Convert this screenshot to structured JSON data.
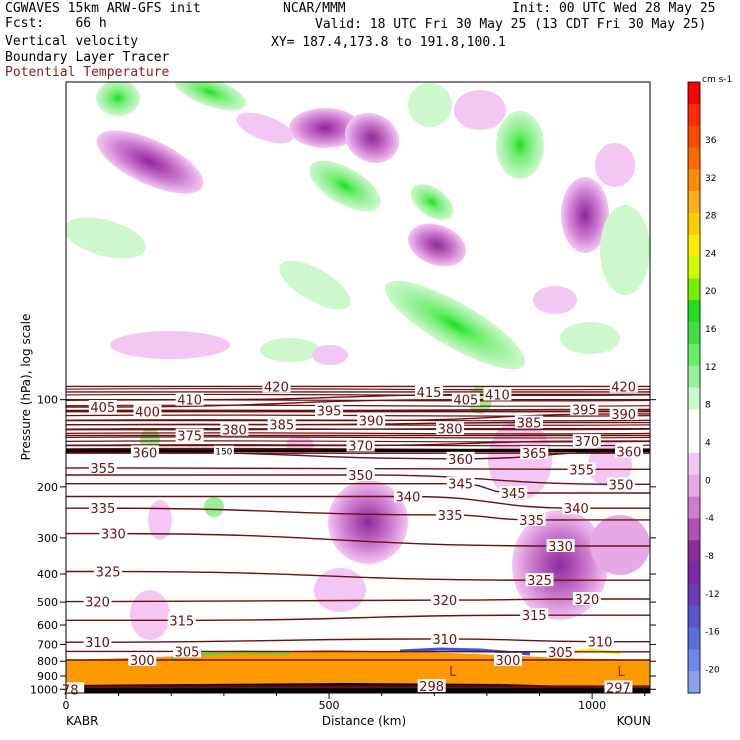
{
  "header": {
    "left_line1": "CGWAVES 15km ARW-GFS init",
    "left_line2": "Fcst:    66 h",
    "center_line1": "NCAR/MMM",
    "init": "Init: 00 UTC Wed 28 May 25",
    "valid": "Valid: 18 UTC Fri 30 May 25 (13 CDT Fri 30 May 25)",
    "xy": "XY= 187.4,173.8 to 191.8,100.1",
    "field1": "Vertical velocity",
    "field2": "Boundary Layer Tracer",
    "field3": "Potential Temperature",
    "field3_color": "#8b1a1a"
  },
  "chart_data": {
    "type": "cross-section",
    "xlabel": "Distance (km)",
    "ylabel": "Pressure (hPa), log scale",
    "xlim": [
      0,
      1110
    ],
    "ylim_hpa": [
      1030,
      8
    ],
    "x_ticks": [
      "0",
      "500",
      "1000"
    ],
    "x_tick_values": [
      0,
      500,
      1000
    ],
    "y_ticks": [
      "100",
      "200",
      "300",
      "400",
      "500",
      "600",
      "700",
      "800",
      "900",
      "1000"
    ],
    "y_tick_values": [
      100,
      200,
      300,
      400,
      500,
      600,
      700,
      800,
      900,
      1000
    ],
    "endpoints": {
      "left": "KABR",
      "right": "KOUN"
    },
    "tropopause_hpa": 150,
    "tropopause_label": "150",
    "theta_labels": [
      {
        "text": "420",
        "x": 400,
        "p": 90
      },
      {
        "text": "420",
        "x": 1060,
        "p": 90
      },
      {
        "text": "415",
        "x": 690,
        "p": 94
      },
      {
        "text": "410",
        "x": 235,
        "p": 100
      },
      {
        "text": "410",
        "x": 820,
        "p": 96
      },
      {
        "text": "405",
        "x": 70,
        "p": 106
      },
      {
        "text": "405",
        "x": 760,
        "p": 100
      },
      {
        "text": "400",
        "x": 155,
        "p": 110
      },
      {
        "text": "395",
        "x": 500,
        "p": 109
      },
      {
        "text": "395",
        "x": 985,
        "p": 108
      },
      {
        "text": "390",
        "x": 580,
        "p": 118
      },
      {
        "text": "390",
        "x": 1060,
        "p": 112
      },
      {
        "text": "385",
        "x": 410,
        "p": 122
      },
      {
        "text": "385",
        "x": 880,
        "p": 120
      },
      {
        "text": "380",
        "x": 320,
        "p": 127
      },
      {
        "text": "380",
        "x": 730,
        "p": 126
      },
      {
        "text": "375",
        "x": 235,
        "p": 133
      },
      {
        "text": "370",
        "x": 560,
        "p": 144
      },
      {
        "text": "370",
        "x": 990,
        "p": 139
      },
      {
        "text": "365",
        "x": 890,
        "p": 153
      },
      {
        "text": "360",
        "x": 150,
        "p": 152
      },
      {
        "text": "360",
        "x": 750,
        "p": 160
      },
      {
        "text": "360",
        "x": 1070,
        "p": 151
      },
      {
        "text": "355",
        "x": 70,
        "p": 172
      },
      {
        "text": "355",
        "x": 980,
        "p": 174
      },
      {
        "text": "350",
        "x": 560,
        "p": 182
      },
      {
        "text": "350",
        "x": 1055,
        "p": 196
      },
      {
        "text": "345",
        "x": 750,
        "p": 195
      },
      {
        "text": "345",
        "x": 850,
        "p": 210
      },
      {
        "text": "340",
        "x": 650,
        "p": 216
      },
      {
        "text": "340",
        "x": 970,
        "p": 237
      },
      {
        "text": "335",
        "x": 70,
        "p": 237
      },
      {
        "text": "335",
        "x": 730,
        "p": 250
      },
      {
        "text": "335",
        "x": 885,
        "p": 260
      },
      {
        "text": "330",
        "x": 90,
        "p": 290
      },
      {
        "text": "330",
        "x": 940,
        "p": 320
      },
      {
        "text": "325",
        "x": 80,
        "p": 392
      },
      {
        "text": "325",
        "x": 900,
        "p": 420
      },
      {
        "text": "320",
        "x": 60,
        "p": 498
      },
      {
        "text": "320",
        "x": 720,
        "p": 492
      },
      {
        "text": "320",
        "x": 990,
        "p": 488
      },
      {
        "text": "315",
        "x": 220,
        "p": 578
      },
      {
        "text": "315",
        "x": 890,
        "p": 555
      },
      {
        "text": "310",
        "x": 60,
        "p": 688
      },
      {
        "text": "310",
        "x": 720,
        "p": 670
      },
      {
        "text": "310",
        "x": 1015,
        "p": 685
      },
      {
        "text": "305",
        "x": 230,
        "p": 740
      },
      {
        "text": "305",
        "x": 940,
        "p": 742
      },
      {
        "text": "300",
        "x": 145,
        "p": 792
      },
      {
        "text": "300",
        "x": 840,
        "p": 792
      },
      {
        "text": "298",
        "x": 695,
        "p": 975
      },
      {
        "text": "297",
        "x": 1050,
        "p": 985
      },
      {
        "text": "78",
        "x": 8,
        "p": 1000
      }
    ],
    "pressure_minima": [
      {
        "text": "L",
        "x": 735,
        "p": 865
      },
      {
        "text": "L",
        "x": 1055,
        "p": 865
      }
    ],
    "colorbar": {
      "unit": "cm s-1",
      "labels": [
        "36",
        "32",
        "28",
        "24",
        "20",
        "16",
        "12",
        "8",
        "4",
        "0",
        "-4",
        "-8",
        "-12",
        "-16",
        "-20"
      ],
      "colors": [
        "#ff0000",
        "#ff2a00",
        "#ff4a00",
        "#ff6a00",
        "#ff8c00",
        "#ffad1a",
        "#ffcc00",
        "#ffee00",
        "#ccff00",
        "#77ee00",
        "#22dd22",
        "#44dd44",
        "#66ee66",
        "#99f099",
        "#ccf8cc",
        "#ffffff",
        "#ffffff",
        "#f3c6f3",
        "#e6a8e6",
        "#cc7dd0",
        "#b050b4",
        "#8c2a9c",
        "#7a2aa8",
        "#6a3cb8",
        "#5a55c8",
        "#5a70d8",
        "#6c88e8",
        "#8aa0f0"
      ]
    }
  }
}
